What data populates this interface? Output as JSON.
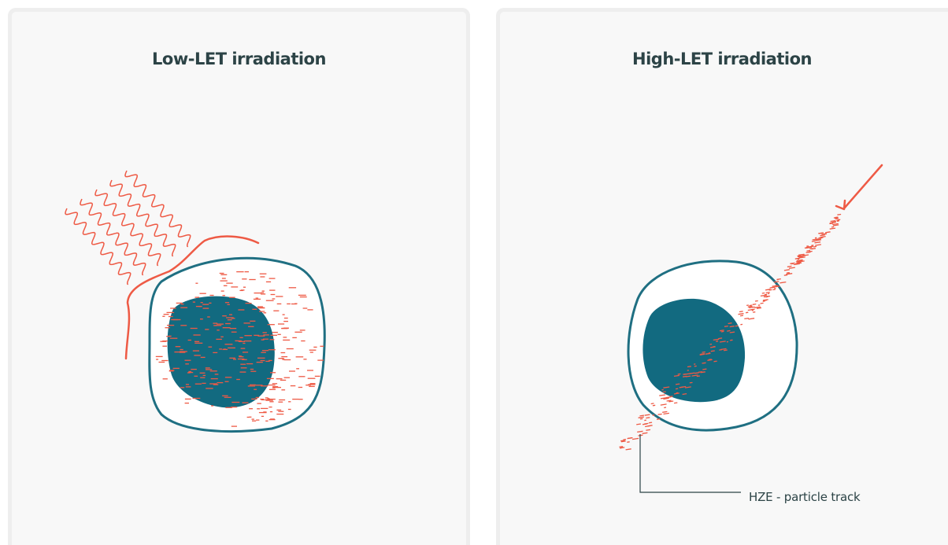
{
  "panels": [
    {
      "title": "Low-LET irradiation"
    },
    {
      "title": "High-LET irradiation",
      "track_label": "HZE - particle track"
    }
  ],
  "colors": {
    "background": "#ffffff",
    "panel": "#f8f8f8",
    "panel_border": "#eeeeee",
    "title_text": "#2c4346",
    "cell_outline": "#1f6f82",
    "nucleus": "#126a80",
    "radiation": "#ee5a45"
  }
}
